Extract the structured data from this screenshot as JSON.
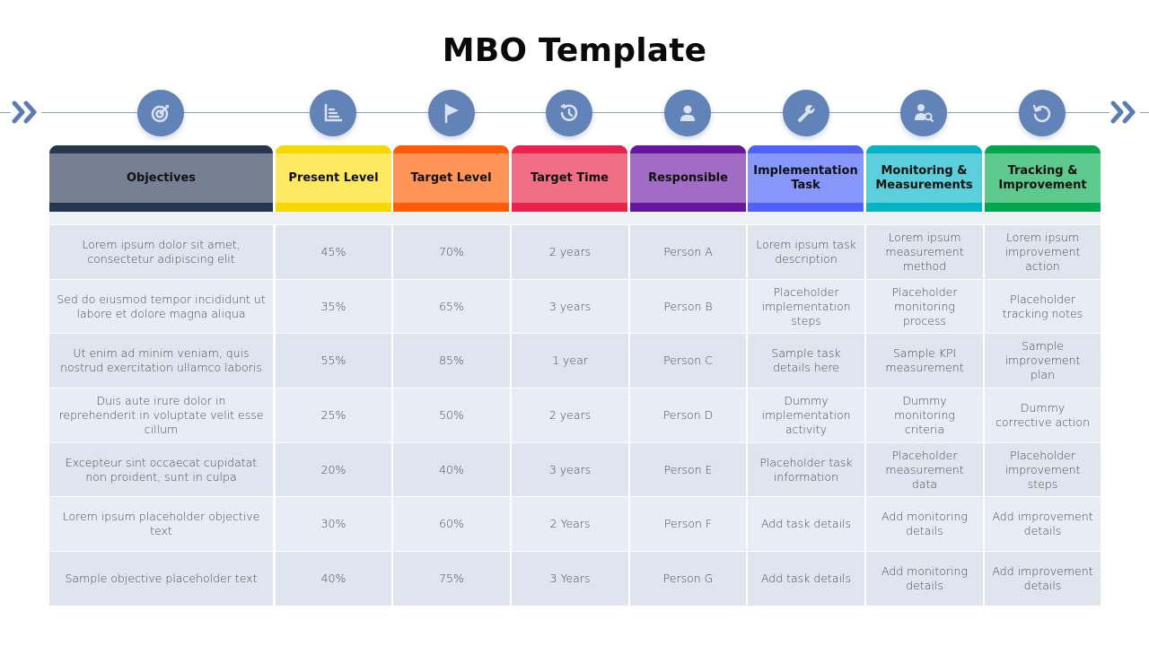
{
  "slide": {
    "title": "MBO Template"
  },
  "timeline": {
    "line_color": "#8fa3c3",
    "chevron_color": "#5b7bb5",
    "circle_color": "#6283b8",
    "icons": [
      {
        "name": "target-icon",
        "column": "Objectives"
      },
      {
        "name": "bar-chart-icon",
        "column": "Present Level"
      },
      {
        "name": "flag-icon",
        "column": "Target Level"
      },
      {
        "name": "history-clock-icon",
        "column": "Target Time"
      },
      {
        "name": "user-icon",
        "column": "Responsible"
      },
      {
        "name": "wrench-icon",
        "column": "Implementation Task"
      },
      {
        "name": "user-search-icon",
        "column": "Monitoring & Measurements"
      },
      {
        "name": "rotate-left-icon",
        "column": "Tracking & Improvement"
      }
    ]
  },
  "table": {
    "headers": [
      {
        "label": "Objectives",
        "top": "#27364f",
        "fill": "#768092",
        "bottom": "#27364f"
      },
      {
        "label": "Present Level",
        "top": "#f7d800",
        "fill": "#fde962",
        "bottom": "#f7d800"
      },
      {
        "label": "Target Level",
        "top": "#ff5b08",
        "fill": "#ff9459",
        "bottom": "#ff5b08"
      },
      {
        "label": "Target Time",
        "top": "#e9224b",
        "fill": "#f06f87",
        "bottom": "#e9224b"
      },
      {
        "label": "Responsible",
        "top": "#67169f",
        "fill": "#a16cc4",
        "bottom": "#67169f"
      },
      {
        "label": "Implementation Task",
        "top": "#4f62f8",
        "fill": "#8897fb",
        "bottom": "#4f62f8"
      },
      {
        "label": "Monitoring & Measurements",
        "top": "#05b3c6",
        "fill": "#5bd0dc",
        "bottom": "#05b3c6"
      },
      {
        "label": "Tracking & Improvement",
        "top": "#00a64d",
        "fill": "#5ec98d",
        "bottom": "#00a64d"
      }
    ],
    "rows": [
      [
        "Lorem ipsum dolor sit amet, consectetur adipiscing elit",
        "45%",
        "70%",
        "2 years",
        "Person A",
        "Lorem ipsum task description",
        "Lorem ipsum measurement method",
        "Lorem ipsum improvement action"
      ],
      [
        "Sed do eiusmod tempor incididunt ut labore et dolore magna aliqua",
        "35%",
        "65%",
        "3 years",
        "Person B",
        "Placeholder implementation steps",
        "Placeholder monitoring process",
        "Placeholder tracking notes"
      ],
      [
        "Ut enim ad minim veniam, quis nostrud exercitation ullamco laboris",
        "55%",
        "85%",
        "1 year",
        "Person C",
        "Sample task details here",
        "Sample KPI measurement",
        "Sample improvement plan"
      ],
      [
        "Duis aute irure dolor in reprehenderit in voluptate velit esse cillum",
        "25%",
        "50%",
        "2 years",
        "Person D",
        "Dummy implementation activity",
        "Dummy monitoring criteria",
        "Dummy corrective action"
      ],
      [
        "Excepteur sint occaecat cupidatat non proident, sunt in culpa",
        "20%",
        "40%",
        "3 years",
        "Person E",
        "Placeholder task information",
        "Placeholder measurement data",
        "Placeholder improvement steps"
      ],
      [
        "Lorem ipsum placeholder objective text",
        "30%",
        "60%",
        "2 Years",
        "Person F",
        "Add task details",
        "Add monitoring details",
        "Add improvement details"
      ],
      [
        "Sample objective placeholder text",
        "40%",
        "75%",
        "3 Years",
        "Person G",
        "Add task details",
        "Add monitoring details",
        "Add improvement details"
      ]
    ]
  }
}
